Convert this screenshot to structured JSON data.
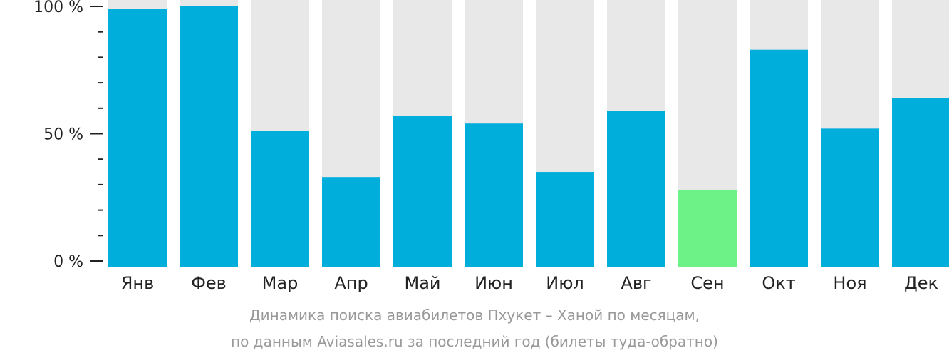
{
  "chart_data": {
    "type": "bar",
    "categories": [
      "Янв",
      "Фев",
      "Мар",
      "Апр",
      "Май",
      "Июн",
      "Июл",
      "Авг",
      "Сен",
      "Окт",
      "Ноя",
      "Дек"
    ],
    "values": [
      99,
      100,
      51,
      33,
      57,
      54,
      35,
      59,
      28,
      83,
      52,
      64
    ],
    "highlight_index": 8,
    "ylim": [
      0,
      100
    ],
    "y_tick_labels": [
      "0 %",
      "50 %",
      "100 %"
    ],
    "y_tick_values": [
      0,
      50,
      100
    ],
    "y_minor_tick_step": 10,
    "grid": false,
    "legend": "none",
    "colors": {
      "bar": "#00AEDB",
      "highlight": "#6CF287",
      "track": "#E8E8E8",
      "axis": "#222222",
      "caption": "#999999"
    },
    "caption_lines": [
      "Динамика поиска авиабилетов Пхукет – Ханой по месяцам,",
      "по данным Aviasales.ru за последний год (билеты туда-обратно)"
    ]
  }
}
